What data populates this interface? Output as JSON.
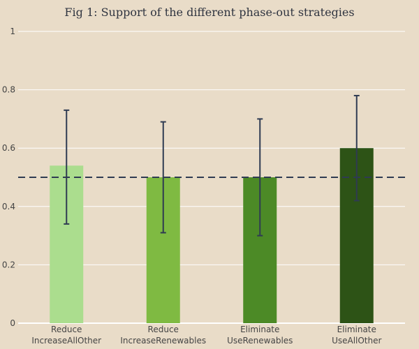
{
  "chart_data": {
    "type": "bar",
    "title": "Fig 1: Support of the different phase-out strategies",
    "xlabel": "",
    "ylabel": "",
    "ylim": [
      0,
      1
    ],
    "yticks": [
      0,
      0.2,
      0.4,
      0.6,
      0.8,
      1
    ],
    "ytick_labels": [
      "0",
      "0.2",
      "0.4",
      "0.6",
      "0.8",
      "1"
    ],
    "grid": true,
    "reference_line": {
      "y": 0.5,
      "style": "dashed"
    },
    "categories": [
      [
        "Reduce",
        "IncreaseAllOther"
      ],
      [
        "Reduce",
        "IncreaseRenewables"
      ],
      [
        "Eliminate",
        "UseRenewables"
      ],
      [
        "Eliminate",
        "UseAllOther"
      ]
    ],
    "values": [
      0.54,
      0.5,
      0.5,
      0.6
    ],
    "error_low": [
      0.34,
      0.31,
      0.3,
      0.42
    ],
    "error_high": [
      0.73,
      0.69,
      0.7,
      0.78
    ],
    "colors": [
      "#abdd8e",
      "#7fba42",
      "#4c8a26",
      "#2d5316"
    ],
    "error_color": "#2f3b52",
    "reference_color": "#2f3b52",
    "grid_color": "#ffffff",
    "background": "#e9dcc8"
  }
}
